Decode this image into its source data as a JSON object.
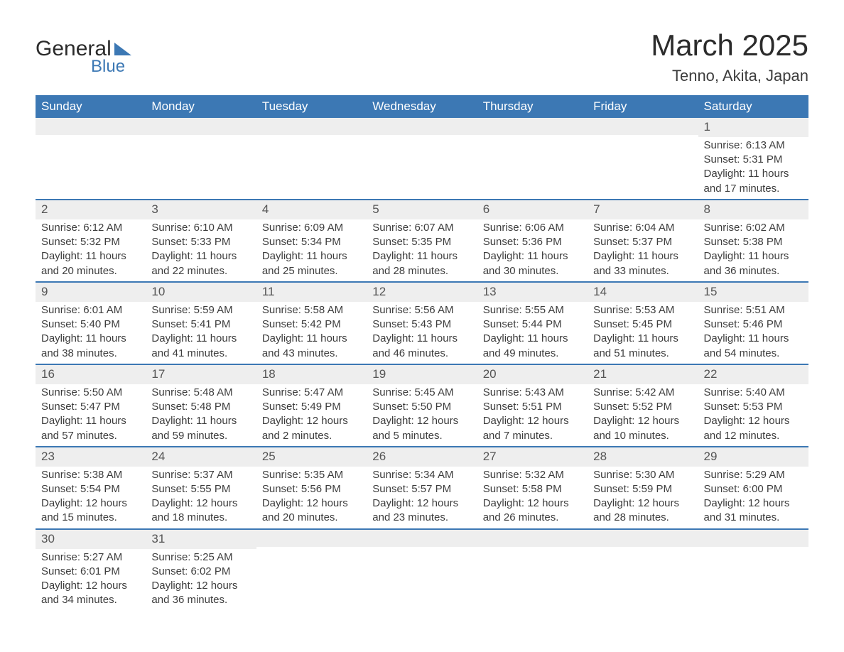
{
  "brand": {
    "name1": "General",
    "name2": "Blue",
    "accent": "#3c78b4"
  },
  "title": "March 2025",
  "location": "Tenno, Akita, Japan",
  "colors": {
    "header_bg": "#3c78b4",
    "header_text": "#ffffff",
    "daynum_bg": "#eeeeee",
    "row_divider": "#3c78b4",
    "text": "#3d3d3d",
    "background": "#ffffff"
  },
  "typography": {
    "title_fontsize": 42,
    "location_fontsize": 22,
    "weekday_fontsize": 17,
    "body_fontsize": 15
  },
  "weekdays": [
    "Sunday",
    "Monday",
    "Tuesday",
    "Wednesday",
    "Thursday",
    "Friday",
    "Saturday"
  ],
  "labels": {
    "sunrise": "Sunrise:",
    "sunset": "Sunset:",
    "daylight": "Daylight:"
  },
  "weeks": [
    [
      null,
      null,
      null,
      null,
      null,
      null,
      {
        "day": 1,
        "sunrise": "6:13 AM",
        "sunset": "5:31 PM",
        "daylight": "11 hours and 17 minutes."
      }
    ],
    [
      {
        "day": 2,
        "sunrise": "6:12 AM",
        "sunset": "5:32 PM",
        "daylight": "11 hours and 20 minutes."
      },
      {
        "day": 3,
        "sunrise": "6:10 AM",
        "sunset": "5:33 PM",
        "daylight": "11 hours and 22 minutes."
      },
      {
        "day": 4,
        "sunrise": "6:09 AM",
        "sunset": "5:34 PM",
        "daylight": "11 hours and 25 minutes."
      },
      {
        "day": 5,
        "sunrise": "6:07 AM",
        "sunset": "5:35 PM",
        "daylight": "11 hours and 28 minutes."
      },
      {
        "day": 6,
        "sunrise": "6:06 AM",
        "sunset": "5:36 PM",
        "daylight": "11 hours and 30 minutes."
      },
      {
        "day": 7,
        "sunrise": "6:04 AM",
        "sunset": "5:37 PM",
        "daylight": "11 hours and 33 minutes."
      },
      {
        "day": 8,
        "sunrise": "6:02 AM",
        "sunset": "5:38 PM",
        "daylight": "11 hours and 36 minutes."
      }
    ],
    [
      {
        "day": 9,
        "sunrise": "6:01 AM",
        "sunset": "5:40 PM",
        "daylight": "11 hours and 38 minutes."
      },
      {
        "day": 10,
        "sunrise": "5:59 AM",
        "sunset": "5:41 PM",
        "daylight": "11 hours and 41 minutes."
      },
      {
        "day": 11,
        "sunrise": "5:58 AM",
        "sunset": "5:42 PM",
        "daylight": "11 hours and 43 minutes."
      },
      {
        "day": 12,
        "sunrise": "5:56 AM",
        "sunset": "5:43 PM",
        "daylight": "11 hours and 46 minutes."
      },
      {
        "day": 13,
        "sunrise": "5:55 AM",
        "sunset": "5:44 PM",
        "daylight": "11 hours and 49 minutes."
      },
      {
        "day": 14,
        "sunrise": "5:53 AM",
        "sunset": "5:45 PM",
        "daylight": "11 hours and 51 minutes."
      },
      {
        "day": 15,
        "sunrise": "5:51 AM",
        "sunset": "5:46 PM",
        "daylight": "11 hours and 54 minutes."
      }
    ],
    [
      {
        "day": 16,
        "sunrise": "5:50 AM",
        "sunset": "5:47 PM",
        "daylight": "11 hours and 57 minutes."
      },
      {
        "day": 17,
        "sunrise": "5:48 AM",
        "sunset": "5:48 PM",
        "daylight": "11 hours and 59 minutes."
      },
      {
        "day": 18,
        "sunrise": "5:47 AM",
        "sunset": "5:49 PM",
        "daylight": "12 hours and 2 minutes."
      },
      {
        "day": 19,
        "sunrise": "5:45 AM",
        "sunset": "5:50 PM",
        "daylight": "12 hours and 5 minutes."
      },
      {
        "day": 20,
        "sunrise": "5:43 AM",
        "sunset": "5:51 PM",
        "daylight": "12 hours and 7 minutes."
      },
      {
        "day": 21,
        "sunrise": "5:42 AM",
        "sunset": "5:52 PM",
        "daylight": "12 hours and 10 minutes."
      },
      {
        "day": 22,
        "sunrise": "5:40 AM",
        "sunset": "5:53 PM",
        "daylight": "12 hours and 12 minutes."
      }
    ],
    [
      {
        "day": 23,
        "sunrise": "5:38 AM",
        "sunset": "5:54 PM",
        "daylight": "12 hours and 15 minutes."
      },
      {
        "day": 24,
        "sunrise": "5:37 AM",
        "sunset": "5:55 PM",
        "daylight": "12 hours and 18 minutes."
      },
      {
        "day": 25,
        "sunrise": "5:35 AM",
        "sunset": "5:56 PM",
        "daylight": "12 hours and 20 minutes."
      },
      {
        "day": 26,
        "sunrise": "5:34 AM",
        "sunset": "5:57 PM",
        "daylight": "12 hours and 23 minutes."
      },
      {
        "day": 27,
        "sunrise": "5:32 AM",
        "sunset": "5:58 PM",
        "daylight": "12 hours and 26 minutes."
      },
      {
        "day": 28,
        "sunrise": "5:30 AM",
        "sunset": "5:59 PM",
        "daylight": "12 hours and 28 minutes."
      },
      {
        "day": 29,
        "sunrise": "5:29 AM",
        "sunset": "6:00 PM",
        "daylight": "12 hours and 31 minutes."
      }
    ],
    [
      {
        "day": 30,
        "sunrise": "5:27 AM",
        "sunset": "6:01 PM",
        "daylight": "12 hours and 34 minutes."
      },
      {
        "day": 31,
        "sunrise": "5:25 AM",
        "sunset": "6:02 PM",
        "daylight": "12 hours and 36 minutes."
      },
      null,
      null,
      null,
      null,
      null
    ]
  ]
}
